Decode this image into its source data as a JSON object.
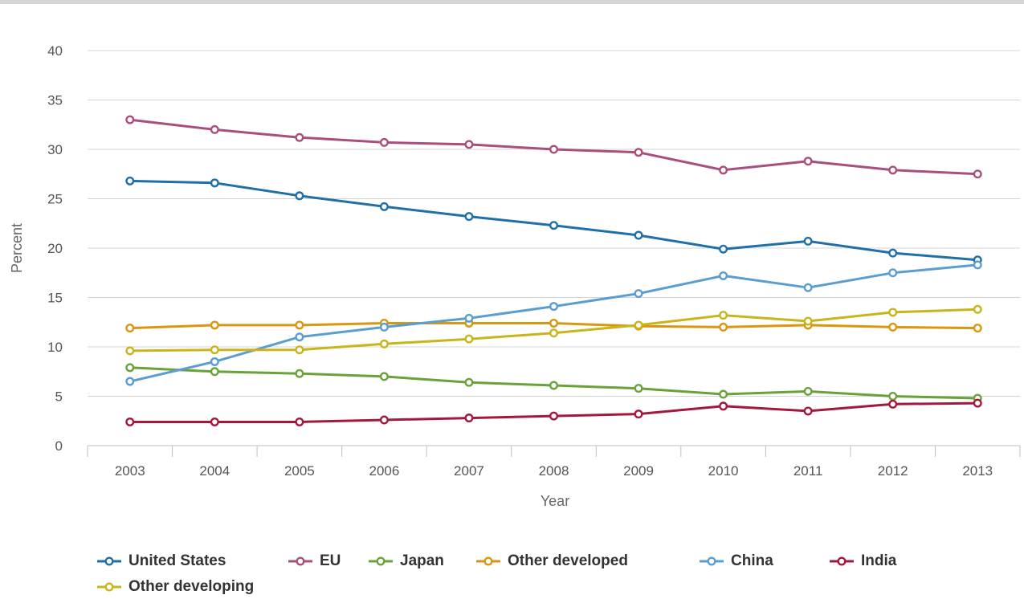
{
  "chart_data": {
    "type": "line",
    "title": "",
    "xlabel": "Year",
    "ylabel": "Percent",
    "categories": [
      "2003",
      "2004",
      "2005",
      "2006",
      "2007",
      "2008",
      "2009",
      "2010",
      "2011",
      "2012",
      "2013"
    ],
    "ylim": [
      0,
      40
    ],
    "yticks": [
      0,
      5,
      10,
      15,
      20,
      25,
      30,
      35,
      40
    ],
    "grid": "horizontal",
    "legend_position": "bottom",
    "series": [
      {
        "name": "United States",
        "color": "#1f6fa8",
        "values": [
          26.8,
          26.6,
          25.3,
          24.2,
          23.2,
          22.3,
          21.3,
          19.9,
          20.7,
          19.5,
          18.8
        ]
      },
      {
        "name": "EU",
        "color": "#a84f7e",
        "values": [
          33.0,
          32.0,
          31.2,
          30.7,
          30.5,
          30.0,
          29.7,
          27.9,
          28.8,
          27.9,
          27.5
        ]
      },
      {
        "name": "Japan",
        "color": "#6aa23a",
        "values": [
          7.9,
          7.5,
          7.3,
          7.0,
          6.4,
          6.1,
          5.8,
          5.2,
          5.5,
          5.0,
          4.8
        ]
      },
      {
        "name": "Other developed",
        "color": "#d9960f",
        "values": [
          11.9,
          12.2,
          12.2,
          12.4,
          12.4,
          12.4,
          12.1,
          12.0,
          12.2,
          12.0,
          11.9
        ]
      },
      {
        "name": "China",
        "color": "#5a9ed1",
        "values": [
          6.5,
          8.5,
          11.0,
          12.0,
          12.9,
          14.1,
          15.4,
          17.2,
          16.0,
          17.5,
          18.3
        ]
      },
      {
        "name": "India",
        "color": "#a3183e",
        "values": [
          2.4,
          2.4,
          2.4,
          2.6,
          2.8,
          3.0,
          3.2,
          4.0,
          3.5,
          4.2,
          4.3
        ]
      },
      {
        "name": "Other developing",
        "color": "#c9b51a",
        "values": [
          9.6,
          9.7,
          9.7,
          10.3,
          10.8,
          11.4,
          12.2,
          13.2,
          12.6,
          13.5,
          13.8
        ]
      }
    ]
  }
}
